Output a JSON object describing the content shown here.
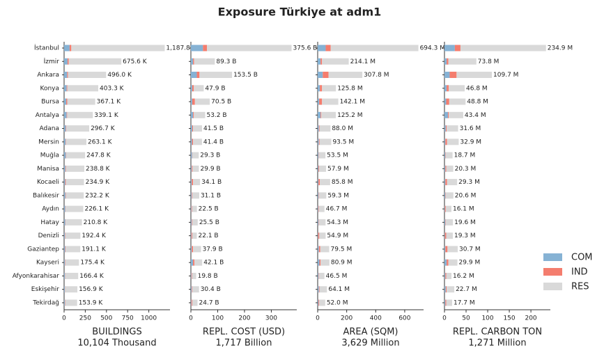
{
  "title": "Exposure Türkiye at adm1",
  "chart_data": [
    {
      "type": "bar",
      "horizontal": true,
      "categories": [
        "İstanbul",
        "İzmir",
        "Ankara",
        "Konya",
        "Bursa",
        "Antalya",
        "Adana",
        "Mersin",
        "Muğla",
        "Manisa",
        "Kocaeli",
        "Balıkesir",
        "Aydın",
        "Hatay",
        "Denizli",
        "Gaziantep",
        "Kayseri",
        "Afyonkarahisar",
        "Eskişehir",
        "Tekirdağ"
      ],
      "series": [
        {
          "name": "COM",
          "color": "#86b2d4",
          "values": [
            65,
            40,
            35,
            30,
            25,
            30,
            20,
            18,
            20,
            15,
            12,
            15,
            14,
            14,
            10,
            12,
            10,
            10,
            8,
            8
          ]
        },
        {
          "name": "IND",
          "color": "#f47d6e",
          "values": [
            20,
            15,
            10,
            8,
            12,
            6,
            6,
            5,
            4,
            6,
            8,
            5,
            4,
            4,
            5,
            6,
            5,
            3,
            3,
            4
          ]
        },
        {
          "name": "RES",
          "color": "#d9d9d9",
          "values": [
            1102.8,
            620.6,
            451.0,
            365.3,
            330.1,
            303.1,
            270.7,
            240.2,
            223.8,
            217.8,
            214.9,
            212.2,
            208.1,
            192.8,
            177.4,
            173.1,
            160.4,
            153.4,
            145.9,
            141.9
          ]
        }
      ],
      "totals": [
        1187.8,
        675.6,
        496.0,
        403.3,
        367.1,
        339.1,
        296.7,
        263.1,
        247.8,
        238.8,
        234.9,
        232.2,
        226.1,
        210.8,
        192.4,
        191.1,
        175.4,
        166.4,
        156.9,
        153.9
      ],
      "total_labels": [
        "1,187.8 K",
        "675.6 K",
        "496.0 K",
        "403.3 K",
        "367.1 K",
        "339.1 K",
        "296.7 K",
        "263.1 K",
        "247.8 K",
        "238.8 K",
        "234.9 K",
        "232.2 K",
        "226.1 K",
        "210.8 K",
        "192.4 K",
        "191.1 K",
        "175.4 K",
        "166.4 K",
        "156.9 K",
        "153.9 K"
      ],
      "xlim": [
        0,
        1250
      ],
      "xticks": [
        0,
        250,
        500,
        750,
        1000
      ],
      "xlabel": "BUILDINGS",
      "xlabel_sub": "10,104 Thousand"
    },
    {
      "type": "bar",
      "horizontal": true,
      "series": [
        {
          "name": "COM",
          "color": "#86b2d4",
          "values": [
            45,
            8,
            22,
            5,
            5,
            8,
            5,
            4,
            4,
            3,
            3,
            3,
            2,
            3,
            2,
            3,
            8,
            2,
            3,
            2
          ]
        },
        {
          "name": "IND",
          "color": "#f47d6e",
          "values": [
            15,
            4,
            10,
            6,
            10,
            3,
            3,
            4,
            1,
            3,
            5,
            2,
            2,
            2,
            3,
            5,
            5,
            2,
            2,
            3
          ]
        },
        {
          "name": "RES",
          "color": "#d9d9d9",
          "values": [
            315.6,
            77.3,
            121.5,
            36.9,
            55.5,
            42.2,
            33.5,
            33.4,
            24.3,
            23.9,
            26.1,
            26.1,
            18.5,
            20.5,
            17.1,
            29.9,
            29.1,
            15.8,
            25.4,
            19.7
          ]
        }
      ],
      "totals": [
        375.6,
        89.3,
        153.5,
        47.9,
        70.5,
        53.2,
        41.5,
        41.4,
        29.3,
        29.9,
        34.1,
        31.1,
        22.5,
        25.5,
        22.1,
        37.9,
        42.1,
        19.8,
        30.4,
        24.7
      ],
      "total_labels": [
        "375.6 B",
        "89.3 B",
        "153.5 B",
        "47.9 B",
        "70.5 B",
        "53.2 B",
        "41.5 B",
        "41.4 B",
        "29.3 B",
        "29.9 B",
        "34.1 B",
        "31.1 B",
        "22.5 B",
        "25.5 B",
        "22.1 B",
        "37.9 B",
        "42.1 B",
        "19.8 B",
        "30.4 B",
        "24.7 B"
      ],
      "xlim": [
        0,
        395
      ],
      "xticks": [
        0,
        100,
        200,
        300
      ],
      "xlabel": "REPL. COST (USD)",
      "xlabel_sub": "1,717 Billion"
    },
    {
      "type": "bar",
      "horizontal": true,
      "series": [
        {
          "name": "COM",
          "color": "#86b2d4",
          "values": [
            55,
            20,
            35,
            15,
            10,
            20,
            8,
            8,
            5,
            5,
            5,
            5,
            4,
            5,
            3,
            8,
            12,
            5,
            8,
            5
          ]
        },
        {
          "name": "IND",
          "color": "#f47d6e",
          "values": [
            35,
            10,
            40,
            15,
            20,
            5,
            5,
            5,
            2,
            5,
            10,
            3,
            4,
            3,
            8,
            10,
            8,
            3,
            4,
            5
          ]
        },
        {
          "name": "RES",
          "color": "#d9d9d9",
          "values": [
            604.3,
            184.1,
            232.8,
            95.8,
            112.1,
            100.2,
            75.0,
            80.5,
            46.5,
            47.9,
            70.8,
            51.3,
            38.7,
            46.3,
            43.9,
            61.5,
            60.9,
            38.5,
            52.1,
            42.0
          ]
        }
      ],
      "totals": [
        694.3,
        214.1,
        307.8,
        125.8,
        142.1,
        125.2,
        88.0,
        93.5,
        53.5,
        57.9,
        85.8,
        59.3,
        46.7,
        54.3,
        54.9,
        79.5,
        80.9,
        46.5,
        64.1,
        52.0
      ],
      "total_labels": [
        "694.3 M",
        "214.1 M",
        "307.8 M",
        "125.8 M",
        "142.1 M",
        "125.2 M",
        "88.0 M",
        "93.5 M",
        "53.5 M",
        "57.9 M",
        "85.8 M",
        "59.3 M",
        "46.7 M",
        "54.3 M",
        "54.9 M",
        "79.5 M",
        "80.9 M",
        "46.5 M",
        "64.1 M",
        "52.0 M"
      ],
      "xlim": [
        0,
        730
      ],
      "xticks": [
        0,
        200,
        400,
        600
      ],
      "xlabel": "AREA (SQM)",
      "xlabel_sub": "3,629 Million"
    },
    {
      "type": "bar",
      "horizontal": true,
      "series": [
        {
          "name": "COM",
          "color": "#86b2d4",
          "values": [
            24,
            5,
            12,
            5,
            4,
            8,
            3,
            2,
            2,
            2,
            2,
            2,
            1,
            2,
            1,
            2,
            5,
            2,
            3,
            2
          ]
        },
        {
          "name": "IND",
          "color": "#f47d6e",
          "values": [
            13,
            4,
            16,
            5,
            7,
            2,
            2,
            4,
            1,
            2,
            4,
            1,
            2,
            1,
            3,
            5,
            4,
            2,
            2,
            2
          ]
        },
        {
          "name": "RES",
          "color": "#d9d9d9",
          "values": [
            197.9,
            64.8,
            81.7,
            36.8,
            37.8,
            33.4,
            26.6,
            26.9,
            15.7,
            16.3,
            23.3,
            17.6,
            13.1,
            16.6,
            15.3,
            23.7,
            20.9,
            12.2,
            17.7,
            13.7
          ]
        }
      ],
      "totals": [
        234.9,
        73.8,
        109.7,
        46.8,
        48.8,
        43.4,
        31.6,
        32.9,
        18.7,
        20.3,
        29.3,
        20.6,
        16.1,
        19.6,
        19.3,
        30.7,
        29.9,
        16.2,
        22.7,
        17.7
      ],
      "total_labels": [
        "234.9 M",
        "73.8 M",
        "109.7 M",
        "46.8 M",
        "48.8 M",
        "43.4 M",
        "31.6 M",
        "32.9 M",
        "18.7 M",
        "20.3 M",
        "29.3 M",
        "20.6 M",
        "16.1 M",
        "19.6 M",
        "19.3 M",
        "30.7 M",
        "29.9 M",
        "16.2 M",
        "22.7 M",
        "17.7 M"
      ],
      "xlim": [
        0,
        245
      ],
      "xticks": [
        0,
        50,
        100,
        150,
        200
      ],
      "xlabel": "REPL. CARBON TON",
      "xlabel_sub": "1,271 Million"
    }
  ]
}
